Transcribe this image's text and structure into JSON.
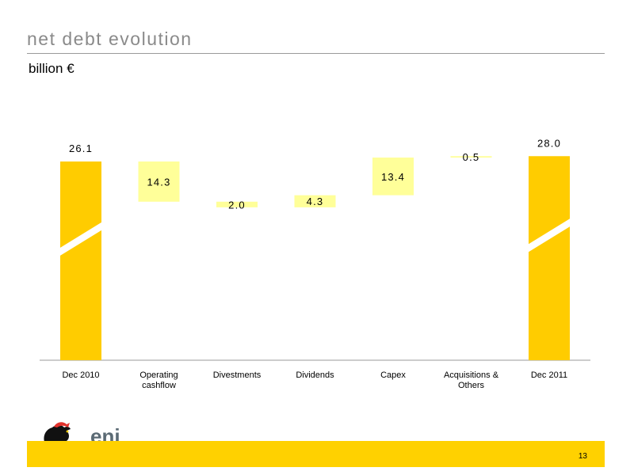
{
  "header": {
    "title": "net debt evolution",
    "subtitle": "billion €"
  },
  "footer": {
    "page_number": "13",
    "logo_text": "eni"
  },
  "colors": {
    "total_bar": "#ffcc00",
    "delta_bar": "#ffff99",
    "title_text": "#8a8a8a",
    "footer_band": "#ffd100",
    "axis": "#9a9a9a"
  },
  "chart_data": {
    "type": "bar",
    "subtype": "waterfall",
    "title": "net debt evolution",
    "ylabel": "billion €",
    "axis_break_on_totals": true,
    "bars": [
      {
        "category": "Dec 2010",
        "category_lines": [
          "Dec 2010"
        ],
        "kind": "total",
        "value": 26.1,
        "label": "26.1"
      },
      {
        "category": "Operating cashflow",
        "category_lines": [
          "Operating",
          "cashflow"
        ],
        "kind": "decrease",
        "value": 14.3,
        "label": "14.3"
      },
      {
        "category": "Divestments",
        "category_lines": [
          "Divestments"
        ],
        "kind": "decrease",
        "value": 2.0,
        "label": "2.0"
      },
      {
        "category": "Dividends",
        "category_lines": [
          "Dividends"
        ],
        "kind": "increase",
        "value": 4.3,
        "label": "4.3"
      },
      {
        "category": "Capex",
        "category_lines": [
          "Capex"
        ],
        "kind": "increase",
        "value": 13.4,
        "label": "13.4"
      },
      {
        "category": "Acquisitions & Others",
        "category_lines": [
          "Acquisitions &",
          "Others"
        ],
        "kind": "increase",
        "value": 0.5,
        "label": "0.5"
      },
      {
        "category": "Dec 2011",
        "category_lines": [
          "Dec 2011"
        ],
        "kind": "total",
        "value": 28.0,
        "label": "28.0"
      }
    ]
  }
}
